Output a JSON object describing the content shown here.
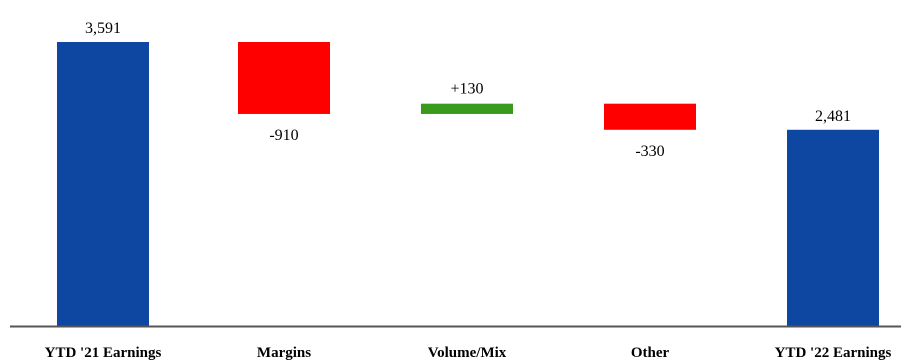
{
  "chart_data": {
    "type": "bar",
    "subtype": "waterfall",
    "categories": [
      "YTD '21 Earnings",
      "Margins",
      "Volume/Mix",
      "Other",
      "YTD '22 Earnings"
    ],
    "values": [
      3591,
      -910,
      130,
      -330,
      2481
    ],
    "kinds": [
      "total",
      "delta",
      "delta",
      "delta",
      "total"
    ],
    "data_labels": [
      "3,591",
      "-910",
      "+130",
      "-330",
      "2,481"
    ],
    "colors": {
      "total": "#0d47a1",
      "increase": "#3a9a1b",
      "decrease": "#ff0000",
      "axis": "#555555"
    },
    "grid": false,
    "legend": "none"
  }
}
